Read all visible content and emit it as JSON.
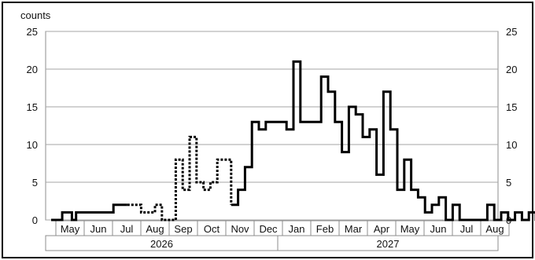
{
  "chart_data": {
    "type": "line",
    "ylabel": "counts",
    "ylim": [
      0,
      25
    ],
    "yticks": [
      0,
      5,
      10,
      15,
      20,
      25
    ],
    "grid": "horizontal",
    "month_labels": [
      "May",
      "Jun",
      "Jul",
      "Aug",
      "Sep",
      "Oct",
      "Nov",
      "Dec",
      "Jan",
      "Feb",
      "Mar",
      "Apr",
      "May",
      "Jun",
      "Jul",
      "Aug"
    ],
    "year_labels": [
      "2026",
      "2027"
    ],
    "x_unit": "weeks from start of May 2026",
    "series": [
      {
        "style": "solid",
        "steps": [
          [
            0,
            0
          ],
          [
            0.5,
            0
          ],
          [
            0.8,
            1
          ],
          [
            1.5,
            0
          ],
          [
            1.8,
            1
          ],
          [
            2.5,
            1
          ],
          [
            3,
            1
          ],
          [
            3.5,
            1
          ],
          [
            4,
            1
          ],
          [
            4.5,
            2
          ],
          [
            5,
            2
          ],
          [
            5.5,
            2
          ]
        ]
      },
      {
        "style": "dotted",
        "steps": [
          [
            5.5,
            2
          ],
          [
            6,
            2
          ],
          [
            6.5,
            1
          ],
          [
            7,
            1
          ],
          [
            7.5,
            2
          ],
          [
            8,
            0
          ],
          [
            8.5,
            0
          ],
          [
            9,
            8
          ],
          [
            9.5,
            4
          ],
          [
            10,
            11
          ],
          [
            10.5,
            5
          ],
          [
            11,
            4
          ],
          [
            11.5,
            5
          ],
          [
            12,
            8
          ],
          [
            12.5,
            8
          ],
          [
            13,
            2
          ]
        ]
      },
      {
        "style": "solid",
        "steps": [
          [
            13,
            2
          ],
          [
            13.5,
            4
          ],
          [
            14,
            7
          ],
          [
            14.5,
            13
          ],
          [
            15,
            12
          ],
          [
            15.5,
            13
          ],
          [
            16,
            13
          ],
          [
            16.5,
            13
          ],
          [
            17,
            12
          ],
          [
            17.5,
            21
          ],
          [
            18,
            13
          ],
          [
            18.5,
            13
          ],
          [
            19,
            13
          ],
          [
            19.5,
            19
          ],
          [
            20,
            17
          ],
          [
            20.5,
            13
          ],
          [
            21,
            9
          ],
          [
            21.5,
            15
          ],
          [
            22,
            14
          ],
          [
            22.5,
            11
          ],
          [
            23,
            12
          ],
          [
            23.5,
            6
          ],
          [
            24,
            17
          ],
          [
            24.5,
            12
          ],
          [
            25,
            4
          ],
          [
            25.5,
            8
          ],
          [
            26,
            4
          ],
          [
            26.5,
            3
          ],
          [
            27,
            1
          ],
          [
            27.5,
            2
          ],
          [
            28,
            3
          ],
          [
            28.5,
            0
          ],
          [
            29,
            2
          ],
          [
            29.5,
            0
          ],
          [
            30,
            0
          ],
          [
            30.5,
            0
          ],
          [
            31,
            0
          ],
          [
            31.5,
            2
          ],
          [
            32,
            0
          ],
          [
            32.5,
            1
          ],
          [
            33,
            0
          ],
          [
            33.5,
            1
          ],
          [
            34,
            0
          ],
          [
            34.5,
            1
          ],
          [
            35,
            0
          ],
          [
            35.5,
            1
          ],
          [
            36,
            0
          ],
          [
            36.5,
            1
          ],
          [
            37,
            0
          ],
          [
            37.5,
            0
          ],
          [
            38,
            0
          ],
          [
            38.5,
            0
          ],
          [
            39,
            0
          ],
          [
            39.5,
            0
          ]
        ]
      }
    ]
  }
}
